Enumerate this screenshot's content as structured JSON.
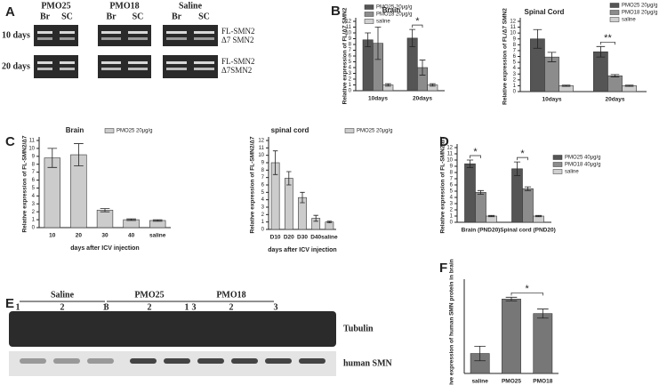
{
  "panels": [
    "A",
    "B",
    "C",
    "D",
    "E",
    "F"
  ],
  "gel": {
    "groups": [
      "PMO25",
      "PMO18",
      "Saline"
    ],
    "lanes": [
      "Br",
      "SC",
      "Br",
      "SC",
      "Br",
      "SC"
    ],
    "rows": [
      "10 days",
      "20 days"
    ],
    "bands": [
      [
        "FL-SMN2",
        "Δ7 SMN2"
      ],
      [
        "FL-SMN2",
        "Δ7SMN2"
      ]
    ]
  },
  "blot": {
    "groups": [
      "Saline",
      "PMO25",
      "PMO18"
    ],
    "lanes": [
      "1",
      "2",
      "3",
      "1",
      "2",
      "3",
      "1",
      "2",
      "3"
    ],
    "rows": [
      "Tubulin",
      "human SMN"
    ]
  },
  "chart_data": [
    {
      "type": "bar",
      "title": "Brain",
      "ylabel": "Relative expression of FL/Δ7 SMN2",
      "categories": [
        "10days",
        "20days"
      ],
      "series": [
        {
          "name": "PMO25 20μg/g",
          "color": "#555555",
          "values": [
            8.8,
            9.1
          ],
          "errors": [
            1.2,
            1.5
          ]
        },
        {
          "name": "PMO18 20μg/g",
          "color": "#8c8c8c",
          "values": [
            8.2,
            4.0
          ],
          "errors": [
            2.8,
            1.3
          ]
        },
        {
          "name": "saline",
          "color": "#d0d0d0",
          "values": [
            1.0,
            1.0
          ],
          "errors": [
            0.2,
            0.2
          ]
        }
      ],
      "ylim": [
        0,
        12
      ],
      "yticks": [
        0,
        1,
        2,
        3,
        4,
        5,
        6,
        7,
        8,
        9,
        10,
        11,
        12
      ],
      "annotations": [
        "*"
      ]
    },
    {
      "type": "bar",
      "title": "Spinal Cord",
      "ylabel": "Relative expression of FL/Δ7 SMN2",
      "categories": [
        "10days",
        "20days"
      ],
      "series": [
        {
          "name": "PMO25 20μg/g",
          "color": "#555555",
          "values": [
            9.0,
            6.8
          ],
          "errors": [
            1.6,
            0.9
          ]
        },
        {
          "name": "PMO18 20μg/g",
          "color": "#8c8c8c",
          "values": [
            5.9,
            2.7
          ],
          "errors": [
            0.8,
            0.2
          ]
        },
        {
          "name": "saline",
          "color": "#d0d0d0",
          "values": [
            1.0,
            1.0
          ],
          "errors": [
            0.1,
            0.1
          ]
        }
      ],
      "ylim": [
        0,
        12
      ],
      "yticks": [
        0,
        1,
        2,
        3,
        4,
        5,
        6,
        7,
        8,
        9,
        10,
        11,
        12
      ],
      "annotations": [
        "**"
      ]
    },
    {
      "type": "bar",
      "title": "Brain",
      "ylabel": "Relative expression of FL-SMN2/Δ7",
      "xlabel": "days after ICV injection",
      "categories": [
        "10",
        "20",
        "30",
        "40",
        "saline"
      ],
      "series": [
        {
          "name": "PMO25 20μg/g",
          "color": "#cccccc",
          "values": [
            8.8,
            9.2,
            2.2,
            1.0,
            0.9
          ],
          "errors": [
            1.2,
            1.4,
            0.2,
            0.1,
            0.1
          ]
        }
      ],
      "ylim": [
        0,
        11
      ],
      "yticks": [
        0,
        1,
        2,
        3,
        4,
        5,
        6,
        7,
        8,
        9,
        10,
        11
      ],
      "annotations": []
    },
    {
      "type": "bar",
      "title": "spinal cord",
      "ylabel": "Relative expression of FL-SMN2/Δ7",
      "xlabel": "days after ICV injection",
      "categories": [
        "D10",
        "D20",
        "D30",
        "D40",
        "saline"
      ],
      "series": [
        {
          "name": "PMO25 20μg/g",
          "color": "#cccccc",
          "values": [
            9.0,
            6.9,
            4.3,
            1.5,
            1.0
          ],
          "errors": [
            1.6,
            0.9,
            0.7,
            0.4,
            0.1
          ]
        }
      ],
      "ylim": [
        0,
        12
      ],
      "yticks": [
        0,
        1,
        2,
        3,
        4,
        5,
        6,
        7,
        8,
        9,
        10,
        11,
        12
      ],
      "annotations": []
    },
    {
      "type": "bar",
      "ylabel": "Relative expression of FL-SMN2/Δ7",
      "categories": [
        "Brain (PND20)",
        "Spinal cord (PND20)"
      ],
      "series": [
        {
          "name": "PMO25 40μg/g",
          "color": "#555555",
          "values": [
            9.4,
            8.6
          ],
          "errors": [
            0.6,
            1.1
          ]
        },
        {
          "name": "PMO18 40μg/g",
          "color": "#8c8c8c",
          "values": [
            4.8,
            5.4
          ],
          "errors": [
            0.3,
            0.3
          ]
        },
        {
          "name": "saline",
          "color": "#d0d0d0",
          "values": [
            1.0,
            1.0
          ],
          "errors": [
            0.1,
            0.1
          ]
        }
      ],
      "ylim": [
        0,
        12
      ],
      "yticks": [
        0,
        1,
        2,
        3,
        4,
        5,
        6,
        7,
        8,
        9,
        10,
        11,
        12
      ],
      "annotations": [
        "*",
        "*"
      ]
    },
    {
      "type": "bar",
      "ylabel": "relative expression of human SMN protein in brain",
      "categories": [
        "saline",
        "PMO25",
        "PMO18"
      ],
      "series": [
        {
          "color": "#777777",
          "values": [
            1.1,
            4.1,
            3.3
          ],
          "errors": [
            0.4,
            0.1,
            0.25
          ]
        }
      ],
      "ylim": [
        0,
        5
      ],
      "annotations": [
        "*"
      ]
    }
  ]
}
